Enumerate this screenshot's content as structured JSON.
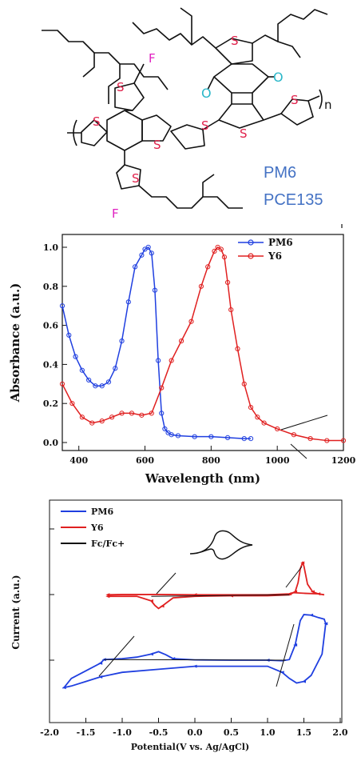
{
  "molecule": {
    "atoms": {
      "S": "S",
      "F": "F",
      "O": "O",
      "n": "n"
    },
    "labels": [
      "PM6",
      "PCE135"
    ]
  },
  "chart_data": [
    {
      "type": "line",
      "xlabel": "Wavelength (nm)",
      "ylabel": "Absorbance (a.u.)",
      "xlim": [
        350,
        1200
      ],
      "ylim": [
        0.0,
        1.05
      ],
      "xticks": [
        "400",
        "600",
        "800",
        "1000",
        "1200"
      ],
      "yticks": [
        "0.0",
        "0.2",
        "0.4",
        "0.6",
        "0.8",
        "1.0"
      ],
      "legend": "top-right",
      "series": [
        {
          "name": "PM6",
          "color": "#1f3fe0",
          "x": [
            350,
            370,
            390,
            410,
            430,
            450,
            470,
            490,
            510,
            530,
            550,
            570,
            590,
            600,
            610,
            620,
            630,
            640,
            650,
            660,
            670,
            680,
            700,
            750,
            800,
            850,
            900,
            920
          ],
          "y": [
            0.7,
            0.55,
            0.44,
            0.37,
            0.32,
            0.29,
            0.29,
            0.31,
            0.38,
            0.52,
            0.72,
            0.9,
            0.96,
            0.99,
            1.0,
            0.97,
            0.78,
            0.42,
            0.15,
            0.07,
            0.05,
            0.04,
            0.035,
            0.03,
            0.03,
            0.025,
            0.02,
            0.02
          ]
        },
        {
          "name": "Y6",
          "color": "#e02020",
          "x": [
            350,
            380,
            410,
            440,
            470,
            500,
            530,
            560,
            590,
            620,
            650,
            680,
            710,
            740,
            770,
            790,
            810,
            820,
            830,
            840,
            850,
            860,
            880,
            900,
            920,
            940,
            960,
            1000,
            1050,
            1100,
            1150,
            1200
          ],
          "y": [
            0.3,
            0.2,
            0.13,
            0.1,
            0.11,
            0.13,
            0.15,
            0.15,
            0.14,
            0.15,
            0.28,
            0.42,
            0.52,
            0.62,
            0.8,
            0.9,
            0.98,
            1.0,
            0.99,
            0.95,
            0.82,
            0.68,
            0.48,
            0.3,
            0.18,
            0.13,
            0.1,
            0.07,
            0.04,
            0.02,
            0.01,
            0.01
          ]
        }
      ]
    },
    {
      "type": "line",
      "xlabel": "Potential(V vs. Ag/AgCl)",
      "ylabel": "Current (a.u.)",
      "xlim": [
        -2.0,
        2.0
      ],
      "xticks": [
        "-2.0",
        "-1.5",
        "-1.0",
        "-0.5",
        "0.0",
        "0.5",
        "1.0",
        "1.5",
        "2.0"
      ],
      "legend": "top-left",
      "series": [
        {
          "name": "PM6",
          "color": "#1f3fe0",
          "x": [
            -1.25,
            -1.0,
            -0.8,
            -0.6,
            -0.5,
            -0.4,
            -0.3,
            0.0,
            0.5,
            1.0,
            1.2,
            1.3,
            1.38,
            1.45,
            1.5,
            1.6,
            1.7,
            1.78,
            1.8,
            1.75,
            1.6,
            1.5,
            1.4,
            1.3,
            1.2,
            1.0,
            0.5,
            0.0,
            -0.5,
            -1.0,
            -1.3,
            -1.5,
            -1.7,
            -1.8,
            -1.7,
            -1.5,
            -1.3,
            -1.25
          ],
          "y": [
            0.02,
            0.05,
            0.1,
            0.2,
            0.28,
            0.18,
            0.05,
            0.01,
            0.0,
            0.0,
            -0.02,
            0.02,
            0.5,
            1.3,
            1.5,
            1.48,
            1.4,
            1.35,
            1.2,
            0.2,
            -0.5,
            -0.7,
            -0.75,
            -0.6,
            -0.4,
            -0.2,
            -0.2,
            -0.2,
            -0.3,
            -0.4,
            -0.55,
            -0.7,
            -0.85,
            -0.9,
            -0.6,
            -0.35,
            -0.1,
            0.02
          ]
        },
        {
          "name": "Y6",
          "color": "#e02020",
          "x": [
            -1.2,
            -1.0,
            -0.8,
            -0.6,
            -0.55,
            -0.5,
            -0.45,
            -0.3,
            0.0,
            0.5,
            1.0,
            1.3,
            1.38,
            1.42,
            1.45,
            1.48,
            1.5,
            1.55,
            1.62,
            1.7,
            1.78,
            1.7,
            1.5,
            1.35,
            1.3,
            1.0,
            0.5,
            0.0,
            -0.5,
            -1.0,
            -1.2
          ],
          "y": [
            2.1,
            2.1,
            2.1,
            1.95,
            1.8,
            1.7,
            1.78,
            2.05,
            2.1,
            2.12,
            2.12,
            2.15,
            2.25,
            2.55,
            3.0,
            3.2,
            3.1,
            2.5,
            2.25,
            2.18,
            2.15,
            2.18,
            2.2,
            2.22,
            2.18,
            2.15,
            2.15,
            2.15,
            2.16,
            2.16,
            2.15
          ]
        },
        {
          "name": "Fc/Fc+",
          "color": "#111111",
          "x": [],
          "y": []
        }
      ]
    }
  ]
}
